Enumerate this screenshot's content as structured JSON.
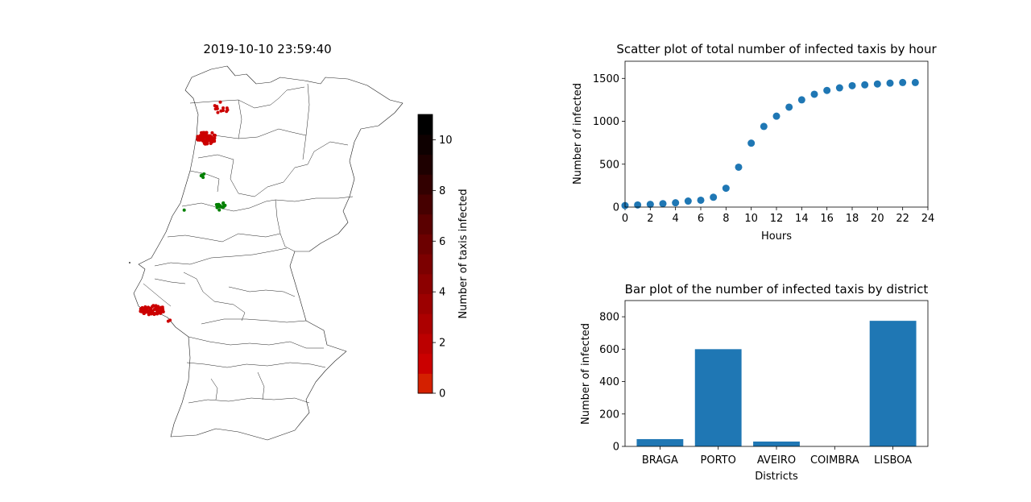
{
  "map": {
    "title": "2019-10-10 23:59:40",
    "colorbar": {
      "label": "Number of taxis infected",
      "ticks": [
        0,
        2,
        4,
        6,
        8,
        10
      ],
      "vmin": 0,
      "vmax": 11,
      "bands": [
        "#d42000",
        "#cb0000",
        "#bc0000",
        "#ac0000",
        "#9c0000",
        "#8c0000",
        "#7c0000",
        "#6c0000",
        "#5a0000",
        "#460000",
        "#320000",
        "#1e0000",
        "#0e0000",
        "#000000"
      ]
    },
    "colors": {
      "infected": "#cc0000",
      "healthy": "#008000"
    }
  },
  "chart_data": [
    {
      "type": "scatter",
      "title": "Scatter plot of total number of infected taxis by hour",
      "xlabel": "Hours",
      "ylabel": "Number of infected",
      "xlim": [
        0,
        24
      ],
      "ylim": [
        0,
        1700
      ],
      "xticks": [
        0,
        2,
        4,
        6,
        8,
        10,
        12,
        14,
        16,
        18,
        20,
        22,
        24
      ],
      "yticks": [
        0,
        500,
        1000,
        1500
      ],
      "color": "#1f77b4",
      "x": [
        0,
        1,
        2,
        3,
        4,
        5,
        6,
        7,
        8,
        9,
        10,
        11,
        12,
        13,
        14,
        15,
        16,
        17,
        18,
        19,
        20,
        21,
        22,
        23
      ],
      "y": [
        18,
        25,
        32,
        40,
        50,
        70,
        80,
        115,
        220,
        465,
        745,
        940,
        1060,
        1165,
        1250,
        1315,
        1360,
        1390,
        1415,
        1425,
        1435,
        1445,
        1452,
        1452
      ]
    },
    {
      "type": "bar",
      "title": "Bar plot of the number of infected taxis by district",
      "xlabel": "Districts",
      "ylabel": "Number of infected",
      "categories": [
        "BRAGA",
        "PORTO",
        "AVEIRO",
        "COIMBRA",
        "LISBOA"
      ],
      "values": [
        45,
        600,
        30,
        0,
        775
      ],
      "ylim": [
        0,
        900
      ],
      "yticks": [
        0,
        200,
        400,
        600,
        800
      ],
      "color": "#1f77b4"
    }
  ]
}
